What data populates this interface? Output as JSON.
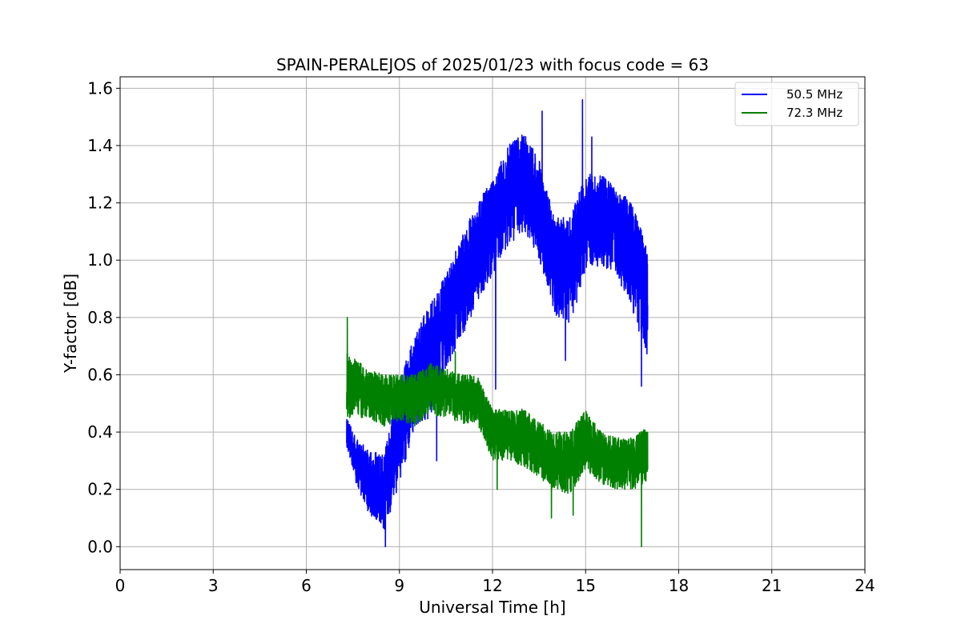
{
  "chart_data": {
    "type": "line",
    "title": "SPAIN-PERALEJOS of 2025/01/23 with focus code = 63",
    "xlabel": "Universal Time [h]",
    "ylabel": "Y-factor [dB]",
    "xlim": [
      0,
      24
    ],
    "ylim": [
      -0.08,
      1.64
    ],
    "xticks": [
      0,
      3,
      6,
      9,
      12,
      15,
      18,
      21,
      24
    ],
    "xtick_labels": [
      "0",
      "3",
      "6",
      "9",
      "12",
      "15",
      "18",
      "21",
      "24"
    ],
    "yticks": [
      0.0,
      0.2,
      0.4,
      0.6,
      0.8,
      1.0,
      1.2,
      1.4,
      1.6
    ],
    "ytick_labels": [
      "0.0",
      "0.2",
      "0.4",
      "0.6",
      "0.8",
      "1.0",
      "1.2",
      "1.4",
      "1.6"
    ],
    "grid": true,
    "legend_position": "top-right",
    "series": [
      {
        "name": "50.5 MHz",
        "color": "#0000ff",
        "x_range": [
          7.3,
          17.0
        ],
        "envelope": [
          {
            "x": 7.3,
            "low": 0.35,
            "high": 0.45
          },
          {
            "x": 7.6,
            "low": 0.22,
            "high": 0.38
          },
          {
            "x": 8.0,
            "low": 0.12,
            "high": 0.34
          },
          {
            "x": 8.5,
            "low": 0.05,
            "high": 0.32
          },
          {
            "x": 9.0,
            "low": 0.22,
            "high": 0.58
          },
          {
            "x": 9.5,
            "low": 0.42,
            "high": 0.75
          },
          {
            "x": 10.0,
            "low": 0.45,
            "high": 0.85
          },
          {
            "x": 10.5,
            "low": 0.62,
            "high": 0.95
          },
          {
            "x": 11.0,
            "low": 0.72,
            "high": 1.08
          },
          {
            "x": 11.5,
            "low": 0.85,
            "high": 1.2
          },
          {
            "x": 12.0,
            "low": 0.95,
            "high": 1.28
          },
          {
            "x": 12.5,
            "low": 1.05,
            "high": 1.4
          },
          {
            "x": 13.0,
            "low": 1.1,
            "high": 1.45
          },
          {
            "x": 13.5,
            "low": 1.0,
            "high": 1.35
          },
          {
            "x": 14.0,
            "low": 0.8,
            "high": 1.15
          },
          {
            "x": 14.5,
            "low": 0.78,
            "high": 1.15
          },
          {
            "x": 15.0,
            "low": 0.95,
            "high": 1.3
          },
          {
            "x": 15.5,
            "low": 0.98,
            "high": 1.3
          },
          {
            "x": 16.0,
            "low": 0.95,
            "high": 1.25
          },
          {
            "x": 16.5,
            "low": 0.82,
            "high": 1.2
          },
          {
            "x": 17.0,
            "low": 0.65,
            "high": 1.05
          }
        ],
        "spikes": [
          {
            "x": 8.55,
            "y": 0.0
          },
          {
            "x": 10.2,
            "y": 0.3
          },
          {
            "x": 12.1,
            "y": 0.55
          },
          {
            "x": 14.35,
            "y": 0.65
          },
          {
            "x": 14.9,
            "y": 1.56
          },
          {
            "x": 13.6,
            "y": 1.52
          },
          {
            "x": 15.2,
            "y": 1.43
          },
          {
            "x": 16.8,
            "y": 0.56
          }
        ]
      },
      {
        "name": "72.3 MHz",
        "color": "#008000",
        "x_range": [
          7.3,
          17.0
        ],
        "envelope": [
          {
            "x": 7.3,
            "low": 0.45,
            "high": 0.68
          },
          {
            "x": 8.0,
            "low": 0.45,
            "high": 0.62
          },
          {
            "x": 8.5,
            "low": 0.42,
            "high": 0.6
          },
          {
            "x": 9.0,
            "low": 0.44,
            "high": 0.6
          },
          {
            "x": 9.5,
            "low": 0.42,
            "high": 0.6
          },
          {
            "x": 10.0,
            "low": 0.46,
            "high": 0.64
          },
          {
            "x": 10.5,
            "low": 0.45,
            "high": 0.62
          },
          {
            "x": 11.0,
            "low": 0.43,
            "high": 0.6
          },
          {
            "x": 11.5,
            "low": 0.43,
            "high": 0.6
          },
          {
            "x": 12.0,
            "low": 0.3,
            "high": 0.48
          },
          {
            "x": 12.5,
            "low": 0.3,
            "high": 0.48
          },
          {
            "x": 13.0,
            "low": 0.28,
            "high": 0.48
          },
          {
            "x": 13.5,
            "low": 0.24,
            "high": 0.44
          },
          {
            "x": 14.0,
            "low": 0.2,
            "high": 0.4
          },
          {
            "x": 14.5,
            "low": 0.18,
            "high": 0.4
          },
          {
            "x": 15.0,
            "low": 0.27,
            "high": 0.48
          },
          {
            "x": 15.5,
            "low": 0.22,
            "high": 0.4
          },
          {
            "x": 16.0,
            "low": 0.2,
            "high": 0.38
          },
          {
            "x": 16.5,
            "low": 0.2,
            "high": 0.38
          },
          {
            "x": 17.0,
            "low": 0.22,
            "high": 0.42
          }
        ],
        "spikes": [
          {
            "x": 7.32,
            "y": 0.8
          },
          {
            "x": 10.8,
            "y": 0.68
          },
          {
            "x": 12.15,
            "y": 0.2
          },
          {
            "x": 13.9,
            "y": 0.1
          },
          {
            "x": 14.6,
            "y": 0.11
          },
          {
            "x": 16.8,
            "y": 0.0
          }
        ]
      }
    ]
  }
}
